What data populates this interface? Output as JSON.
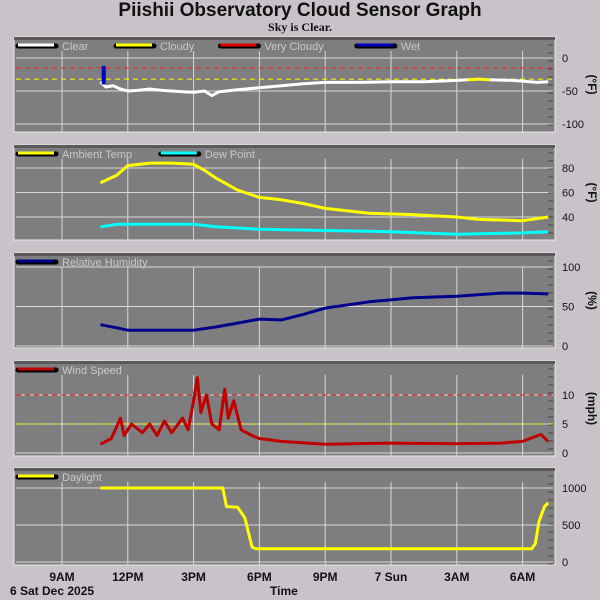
{
  "title": "Piishii Observatory Cloud Sensor Graph",
  "subtitle": "Sky is Clear.",
  "xaxis": {
    "label": "Time",
    "date_label": "6 Sat Dec 2025",
    "start": "2025-12-06T07:30",
    "end": "2025-12-07T07:40",
    "ticks": [
      {
        "t": "2025-12-06T09:00",
        "label": "9AM"
      },
      {
        "t": "2025-12-06T12:00",
        "label": "12PM"
      },
      {
        "t": "2025-12-06T15:00",
        "label": "3PM"
      },
      {
        "t": "2025-12-06T18:00",
        "label": "6PM"
      },
      {
        "t": "2025-12-06T21:00",
        "label": "9PM"
      },
      {
        "t": "2025-12-07T00:00",
        "label": "7 Sun"
      },
      {
        "t": "2025-12-07T03:00",
        "label": "3AM"
      },
      {
        "t": "2025-12-07T06:00",
        "label": "6AM"
      }
    ]
  },
  "colors": {
    "panel": "#7e7e80",
    "grid": "#d8d8d8",
    "axis_text": "#111111"
  },
  "chart_data": [
    {
      "type": "line",
      "id": "sky",
      "ylabel": "(°F)",
      "ylim": [
        -100,
        10
      ],
      "yticks": [
        0,
        -50,
        -100
      ],
      "grid": true,
      "legend": "top-left",
      "legend_entries": [
        {
          "name": "Clear",
          "color": "#ffffff"
        },
        {
          "name": "Cloudy",
          "color": "#ffff00"
        },
        {
          "name": "Very Cloudy",
          "color": "#e00000"
        },
        {
          "name": "Wet",
          "color": "#0000c0"
        }
      ],
      "thresholds": [
        {
          "value": -15,
          "color": "#ff2020"
        },
        {
          "value": -32,
          "color": "#ffff00"
        }
      ],
      "series": [
        {
          "name": "Clear",
          "color": "#ffffff",
          "points": [
            [
              "2025-12-06T10:45",
              -36
            ],
            [
              "2025-12-06T11:00",
              -44
            ],
            [
              "2025-12-06T11:20",
              -42
            ],
            [
              "2025-12-06T11:40",
              -47
            ],
            [
              "2025-12-06T12:00",
              -50
            ],
            [
              "2025-12-06T12:30",
              -49
            ],
            [
              "2025-12-06T13:00",
              -47
            ],
            [
              "2025-12-06T13:30",
              -49
            ],
            [
              "2025-12-06T14:00",
              -50
            ],
            [
              "2025-12-06T14:30",
              -51
            ],
            [
              "2025-12-06T15:00",
              -52
            ],
            [
              "2025-12-06T15:30",
              -50
            ],
            [
              "2025-12-06T15:50",
              -57
            ],
            [
              "2025-12-06T16:10",
              -51
            ],
            [
              "2025-12-06T17:00",
              -48
            ],
            [
              "2025-12-06T18:00",
              -45
            ],
            [
              "2025-12-06T19:00",
              -42
            ],
            [
              "2025-12-06T20:00",
              -39
            ],
            [
              "2025-12-06T21:00",
              -37
            ],
            [
              "2025-12-06T22:30",
              -37
            ],
            [
              "2025-12-07T00:00",
              -36
            ],
            [
              "2025-12-07T01:30",
              -36
            ],
            [
              "2025-12-07T03:00",
              -34
            ],
            [
              "2025-12-07T03:30",
              -33
            ]
          ]
        },
        {
          "name": "Cloudy",
          "color": "#ffff00",
          "points": [
            [
              "2025-12-07T03:30",
              -33
            ],
            [
              "2025-12-07T04:00",
              -32
            ],
            [
              "2025-12-07T04:30",
              -33
            ]
          ]
        },
        {
          "name": "Clear",
          "color": "#ffffff",
          "points": [
            [
              "2025-12-07T04:30",
              -33
            ],
            [
              "2025-12-07T05:30",
              -34
            ],
            [
              "2025-12-07T06:00",
              -35
            ],
            [
              "2025-12-07T06:40",
              -37
            ],
            [
              "2025-12-07T07:10",
              -36
            ]
          ]
        },
        {
          "name": "Wet",
          "color": "#0000c0",
          "points": [
            [
              "2025-12-06T10:54",
              -12
            ],
            [
              "2025-12-06T10:54",
              -40
            ]
          ]
        }
      ]
    },
    {
      "type": "line",
      "id": "temp",
      "ylabel": "(°F)",
      "ylim": [
        25,
        98
      ],
      "yticks": [
        80,
        60,
        40
      ],
      "grid": true,
      "legend": "top-left",
      "legend_entries": [
        {
          "name": "Ambient Temp",
          "color": "#ffff00"
        },
        {
          "name": "Dew Point",
          "color": "#00ffff"
        }
      ],
      "series": [
        {
          "name": "Ambient Temp",
          "color": "#ffff00",
          "points": [
            [
              "2025-12-06T10:45",
              68
            ],
            [
              "2025-12-06T11:30",
              74
            ],
            [
              "2025-12-06T12:00",
              82
            ],
            [
              "2025-12-06T13:00",
              84
            ],
            [
              "2025-12-06T14:00",
              84
            ],
            [
              "2025-12-06T15:00",
              83
            ],
            [
              "2025-12-06T15:30",
              78
            ],
            [
              "2025-12-06T16:00",
              72
            ],
            [
              "2025-12-06T17:00",
              62
            ],
            [
              "2025-12-06T18:00",
              56
            ],
            [
              "2025-12-06T19:00",
              54
            ],
            [
              "2025-12-06T20:00",
              51
            ],
            [
              "2025-12-06T21:00",
              47
            ],
            [
              "2025-12-06T23:00",
              43
            ],
            [
              "2025-12-07T01:00",
              42
            ],
            [
              "2025-12-07T03:00",
              40
            ],
            [
              "2025-12-07T04:00",
              38
            ],
            [
              "2025-12-07T06:00",
              37
            ],
            [
              "2025-12-07T07:10",
              40
            ]
          ]
        },
        {
          "name": "Dew Point",
          "color": "#00ffff",
          "points": [
            [
              "2025-12-06T10:45",
              32
            ],
            [
              "2025-12-06T11:30",
              34
            ],
            [
              "2025-12-06T15:00",
              34
            ],
            [
              "2025-12-06T16:00",
              32
            ],
            [
              "2025-12-06T18:00",
              30
            ],
            [
              "2025-12-06T21:00",
              29
            ],
            [
              "2025-12-07T00:00",
              28
            ],
            [
              "2025-12-07T03:00",
              26
            ],
            [
              "2025-12-07T06:00",
              27
            ],
            [
              "2025-12-07T07:10",
              28
            ]
          ]
        }
      ]
    },
    {
      "type": "line",
      "id": "humidity",
      "ylabel": "(%)",
      "ylim": [
        0,
        112
      ],
      "yticks": [
        100,
        50,
        0
      ],
      "grid": true,
      "legend": "top-left",
      "legend_entries": [
        {
          "name": "Relative Humidity",
          "color": "#00008b"
        }
      ],
      "series": [
        {
          "name": "Relative Humidity",
          "color": "#00008b",
          "points": [
            [
              "2025-12-06T10:45",
              27
            ],
            [
              "2025-12-06T11:30",
              23
            ],
            [
              "2025-12-06T12:00",
              20
            ],
            [
              "2025-12-06T15:00",
              20
            ],
            [
              "2025-12-06T16:00",
              24
            ],
            [
              "2025-12-06T17:00",
              29
            ],
            [
              "2025-12-06T18:00",
              34
            ],
            [
              "2025-12-06T19:00",
              33
            ],
            [
              "2025-12-06T20:00",
              40
            ],
            [
              "2025-12-06T21:00",
              48
            ],
            [
              "2025-12-06T23:00",
              56
            ],
            [
              "2025-12-07T01:00",
              61
            ],
            [
              "2025-12-07T03:00",
              63
            ],
            [
              "2025-12-07T05:00",
              67
            ],
            [
              "2025-12-07T06:00",
              67
            ],
            [
              "2025-12-07T07:10",
              66
            ]
          ]
        }
      ]
    },
    {
      "type": "line",
      "id": "wind",
      "ylabel": "(mph)",
      "ylim": [
        0,
        15
      ],
      "yticks": [
        10,
        5,
        0
      ],
      "grid": true,
      "legend": "top-left",
      "legend_entries": [
        {
          "name": "Wind Speed",
          "color": "#c00000"
        }
      ],
      "thresholds": [
        {
          "value": 10,
          "color": "#ff2020"
        },
        {
          "value": 5,
          "color": "#ffff00"
        }
      ],
      "series": [
        {
          "name": "Wind Speed",
          "color": "#c00000",
          "points": [
            [
              "2025-12-06T10:45",
              1.5
            ],
            [
              "2025-12-06T11:15",
              2.5
            ],
            [
              "2025-12-06T11:40",
              6
            ],
            [
              "2025-12-06T11:50",
              3
            ],
            [
              "2025-12-06T12:10",
              5
            ],
            [
              "2025-12-06T12:40",
              3.5
            ],
            [
              "2025-12-06T13:00",
              5
            ],
            [
              "2025-12-06T13:20",
              3
            ],
            [
              "2025-12-06T13:40",
              5.5
            ],
            [
              "2025-12-06T14:00",
              3.5
            ],
            [
              "2025-12-06T14:30",
              6
            ],
            [
              "2025-12-06T14:45",
              4
            ],
            [
              "2025-12-06T15:00",
              9
            ],
            [
              "2025-12-06T15:10",
              13
            ],
            [
              "2025-12-06T15:20",
              7
            ],
            [
              "2025-12-06T15:35",
              10
            ],
            [
              "2025-12-06T15:50",
              5
            ],
            [
              "2025-12-06T16:10",
              4
            ],
            [
              "2025-12-06T16:25",
              11
            ],
            [
              "2025-12-06T16:35",
              6
            ],
            [
              "2025-12-06T16:50",
              9
            ],
            [
              "2025-12-06T17:10",
              4
            ],
            [
              "2025-12-06T17:40",
              3
            ],
            [
              "2025-12-06T18:00",
              2.5
            ],
            [
              "2025-12-06T19:00",
              2
            ],
            [
              "2025-12-06T21:00",
              1.5
            ],
            [
              "2025-12-07T00:00",
              1.7
            ],
            [
              "2025-12-07T03:00",
              1.6
            ],
            [
              "2025-12-07T05:00",
              1.7
            ],
            [
              "2025-12-07T06:00",
              2
            ],
            [
              "2025-12-07T06:50",
              3.2
            ],
            [
              "2025-12-07T07:10",
              2
            ]
          ]
        }
      ]
    },
    {
      "type": "line",
      "id": "daylight",
      "ylabel": "",
      "ylim": [
        0,
        1100
      ],
      "yticks": [
        1000,
        500,
        0
      ],
      "grid": true,
      "legend": "top-left",
      "legend_entries": [
        {
          "name": "Daylight",
          "color": "#ffff00"
        }
      ],
      "series": [
        {
          "name": "Daylight",
          "color": "#ffff00",
          "points": [
            [
              "2025-12-06T10:45",
              1000
            ],
            [
              "2025-12-06T16:20",
              1000
            ],
            [
              "2025-12-06T16:30",
              750
            ],
            [
              "2025-12-06T17:00",
              740
            ],
            [
              "2025-12-06T17:20",
              600
            ],
            [
              "2025-12-06T17:40",
              200
            ],
            [
              "2025-12-06T17:50",
              180
            ],
            [
              "2025-12-07T06:25",
              180
            ],
            [
              "2025-12-07T06:35",
              250
            ],
            [
              "2025-12-07T06:45",
              550
            ],
            [
              "2025-12-07T07:00",
              750
            ],
            [
              "2025-12-07T07:10",
              800
            ]
          ]
        }
      ]
    }
  ]
}
